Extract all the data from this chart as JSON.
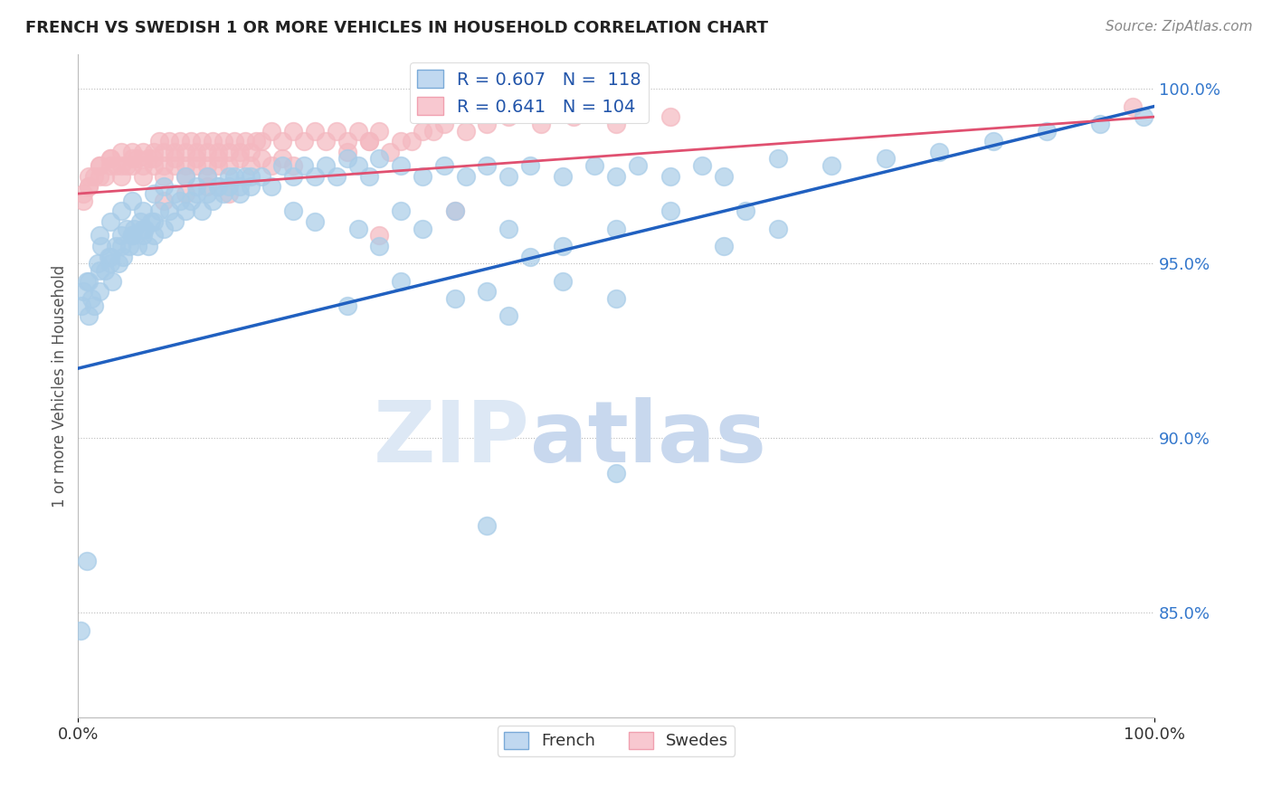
{
  "title": "FRENCH VS SWEDISH 1 OR MORE VEHICLES IN HOUSEHOLD CORRELATION CHART",
  "source": "Source: ZipAtlas.com",
  "ylabel": "1 or more Vehicles in Household",
  "right_yticks": [
    85.0,
    90.0,
    95.0,
    100.0
  ],
  "right_ytick_labels": [
    "85.0%",
    "90.0%",
    "95.0%",
    "100.0%"
  ],
  "dot_color_french": "#a8cce8",
  "dot_color_swedes": "#f4b8c0",
  "line_color_french": "#2060c0",
  "line_color_swedes": "#e05070",
  "ymin": 82.0,
  "ymax": 101.0,
  "xmin": 0.0,
  "xmax": 100.0,
  "french_data": [
    [
      0.3,
      93.8
    ],
    [
      0.5,
      94.2
    ],
    [
      0.8,
      94.5
    ],
    [
      1.0,
      93.5
    ],
    [
      1.2,
      94.0
    ],
    [
      1.5,
      93.8
    ],
    [
      1.8,
      95.0
    ],
    [
      2.0,
      94.2
    ],
    [
      2.2,
      95.5
    ],
    [
      2.5,
      94.8
    ],
    [
      2.8,
      95.2
    ],
    [
      3.0,
      95.0
    ],
    [
      3.2,
      94.5
    ],
    [
      3.5,
      95.5
    ],
    [
      3.8,
      95.0
    ],
    [
      4.0,
      95.8
    ],
    [
      4.2,
      95.2
    ],
    [
      4.5,
      96.0
    ],
    [
      4.8,
      95.5
    ],
    [
      5.0,
      95.8
    ],
    [
      5.2,
      96.0
    ],
    [
      5.5,
      95.5
    ],
    [
      5.8,
      96.2
    ],
    [
      6.0,
      95.8
    ],
    [
      6.2,
      96.0
    ],
    [
      6.5,
      95.5
    ],
    [
      6.8,
      96.2
    ],
    [
      7.0,
      95.8
    ],
    [
      7.5,
      96.5
    ],
    [
      8.0,
      96.0
    ],
    [
      8.5,
      96.5
    ],
    [
      9.0,
      96.2
    ],
    [
      9.5,
      96.8
    ],
    [
      10.0,
      96.5
    ],
    [
      10.5,
      96.8
    ],
    [
      11.0,
      97.0
    ],
    [
      11.5,
      96.5
    ],
    [
      12.0,
      97.0
    ],
    [
      12.5,
      96.8
    ],
    [
      13.0,
      97.2
    ],
    [
      13.5,
      97.0
    ],
    [
      14.0,
      97.2
    ],
    [
      14.5,
      97.5
    ],
    [
      15.0,
      97.0
    ],
    [
      15.5,
      97.5
    ],
    [
      16.0,
      97.2
    ],
    [
      17.0,
      97.5
    ],
    [
      18.0,
      97.2
    ],
    [
      19.0,
      97.8
    ],
    [
      20.0,
      97.5
    ],
    [
      21.0,
      97.8
    ],
    [
      22.0,
      97.5
    ],
    [
      23.0,
      97.8
    ],
    [
      24.0,
      97.5
    ],
    [
      25.0,
      98.0
    ],
    [
      26.0,
      97.8
    ],
    [
      27.0,
      97.5
    ],
    [
      28.0,
      98.0
    ],
    [
      30.0,
      97.8
    ],
    [
      32.0,
      97.5
    ],
    [
      34.0,
      97.8
    ],
    [
      36.0,
      97.5
    ],
    [
      38.0,
      97.8
    ],
    [
      40.0,
      97.5
    ],
    [
      42.0,
      97.8
    ],
    [
      45.0,
      97.5
    ],
    [
      48.0,
      97.8
    ],
    [
      50.0,
      97.5
    ],
    [
      52.0,
      97.8
    ],
    [
      55.0,
      97.5
    ],
    [
      58.0,
      97.8
    ],
    [
      60.0,
      97.5
    ],
    [
      65.0,
      98.0
    ],
    [
      70.0,
      97.8
    ],
    [
      75.0,
      98.0
    ],
    [
      80.0,
      98.2
    ],
    [
      85.0,
      98.5
    ],
    [
      90.0,
      98.8
    ],
    [
      95.0,
      99.0
    ],
    [
      99.0,
      99.2
    ],
    [
      2.0,
      95.8
    ],
    [
      3.0,
      96.2
    ],
    [
      4.0,
      96.5
    ],
    [
      5.0,
      96.8
    ],
    [
      6.0,
      96.5
    ],
    [
      7.0,
      97.0
    ],
    [
      8.0,
      97.2
    ],
    [
      9.0,
      97.0
    ],
    [
      10.0,
      97.5
    ],
    [
      11.0,
      97.2
    ],
    [
      12.0,
      97.5
    ],
    [
      13.0,
      97.2
    ],
    [
      14.0,
      97.5
    ],
    [
      15.0,
      97.2
    ],
    [
      16.0,
      97.5
    ],
    [
      1.0,
      94.5
    ],
    [
      2.0,
      94.8
    ],
    [
      3.0,
      95.2
    ],
    [
      4.0,
      95.5
    ],
    [
      5.0,
      95.8
    ],
    [
      6.0,
      96.0
    ],
    [
      7.0,
      96.2
    ],
    [
      0.2,
      84.5
    ],
    [
      0.8,
      86.5
    ],
    [
      30.0,
      94.5
    ],
    [
      35.0,
      94.0
    ],
    [
      40.0,
      93.5
    ],
    [
      25.0,
      93.8
    ],
    [
      35.0,
      96.5
    ],
    [
      40.0,
      96.0
    ],
    [
      45.0,
      95.5
    ],
    [
      50.0,
      96.0
    ],
    [
      45.0,
      94.5
    ],
    [
      50.0,
      94.0
    ],
    [
      38.0,
      94.2
    ],
    [
      42.0,
      95.2
    ],
    [
      30.0,
      96.5
    ],
    [
      32.0,
      96.0
    ],
    [
      28.0,
      95.5
    ],
    [
      26.0,
      96.0
    ],
    [
      20.0,
      96.5
    ],
    [
      22.0,
      96.2
    ],
    [
      50.0,
      89.0
    ],
    [
      38.0,
      87.5
    ],
    [
      60.0,
      95.5
    ],
    [
      62.0,
      96.5
    ],
    [
      65.0,
      96.0
    ],
    [
      55.0,
      96.5
    ]
  ],
  "swedes_data": [
    [
      0.5,
      96.8
    ],
    [
      1.0,
      97.2
    ],
    [
      1.5,
      97.5
    ],
    [
      2.0,
      97.8
    ],
    [
      2.5,
      97.5
    ],
    [
      3.0,
      98.0
    ],
    [
      3.5,
      97.8
    ],
    [
      4.0,
      98.2
    ],
    [
      4.5,
      97.8
    ],
    [
      5.0,
      98.2
    ],
    [
      5.5,
      98.0
    ],
    [
      6.0,
      98.2
    ],
    [
      6.5,
      98.0
    ],
    [
      7.0,
      98.2
    ],
    [
      7.5,
      98.5
    ],
    [
      8.0,
      98.2
    ],
    [
      8.5,
      98.5
    ],
    [
      9.0,
      98.2
    ],
    [
      9.5,
      98.5
    ],
    [
      10.0,
      98.2
    ],
    [
      10.5,
      98.5
    ],
    [
      11.0,
      98.2
    ],
    [
      11.5,
      98.5
    ],
    [
      12.0,
      98.2
    ],
    [
      12.5,
      98.5
    ],
    [
      13.0,
      98.2
    ],
    [
      13.5,
      98.5
    ],
    [
      14.0,
      98.2
    ],
    [
      14.5,
      98.5
    ],
    [
      15.0,
      98.2
    ],
    [
      15.5,
      98.5
    ],
    [
      16.0,
      98.2
    ],
    [
      16.5,
      98.5
    ],
    [
      17.0,
      98.5
    ],
    [
      18.0,
      98.8
    ],
    [
      19.0,
      98.5
    ],
    [
      20.0,
      98.8
    ],
    [
      21.0,
      98.5
    ],
    [
      22.0,
      98.8
    ],
    [
      23.0,
      98.5
    ],
    [
      24.0,
      98.8
    ],
    [
      25.0,
      98.5
    ],
    [
      26.0,
      98.8
    ],
    [
      27.0,
      98.5
    ],
    [
      28.0,
      98.8
    ],
    [
      30.0,
      98.5
    ],
    [
      32.0,
      98.8
    ],
    [
      34.0,
      99.0
    ],
    [
      36.0,
      98.8
    ],
    [
      38.0,
      99.0
    ],
    [
      1.0,
      97.5
    ],
    [
      2.0,
      97.8
    ],
    [
      3.0,
      98.0
    ],
    [
      4.0,
      97.8
    ],
    [
      5.0,
      98.0
    ],
    [
      6.0,
      97.8
    ],
    [
      7.0,
      98.0
    ],
    [
      8.0,
      97.8
    ],
    [
      9.0,
      98.0
    ],
    [
      10.0,
      97.8
    ],
    [
      11.0,
      98.0
    ],
    [
      12.0,
      97.8
    ],
    [
      13.0,
      98.0
    ],
    [
      14.0,
      97.8
    ],
    [
      15.0,
      98.0
    ],
    [
      16.0,
      97.8
    ],
    [
      17.0,
      98.0
    ],
    [
      18.0,
      97.8
    ],
    [
      19.0,
      98.0
    ],
    [
      20.0,
      97.8
    ],
    [
      0.5,
      97.0
    ],
    [
      1.0,
      97.2
    ],
    [
      2.0,
      97.5
    ],
    [
      3.0,
      97.8
    ],
    [
      4.0,
      97.5
    ],
    [
      5.0,
      97.8
    ],
    [
      6.0,
      97.5
    ],
    [
      7.0,
      97.8
    ],
    [
      8.0,
      97.5
    ],
    [
      9.0,
      97.8
    ],
    [
      10.0,
      97.5
    ],
    [
      11.0,
      97.8
    ],
    [
      12.0,
      97.5
    ],
    [
      13.0,
      97.8
    ],
    [
      25.0,
      98.2
    ],
    [
      27.0,
      98.5
    ],
    [
      29.0,
      98.2
    ],
    [
      31.0,
      98.5
    ],
    [
      33.0,
      98.8
    ],
    [
      8.0,
      96.8
    ],
    [
      10.0,
      97.0
    ],
    [
      12.0,
      97.2
    ],
    [
      14.0,
      97.0
    ],
    [
      35.0,
      96.5
    ],
    [
      28.0,
      95.8
    ],
    [
      40.0,
      99.2
    ],
    [
      43.0,
      99.0
    ],
    [
      46.0,
      99.2
    ],
    [
      50.0,
      99.0
    ],
    [
      55.0,
      99.2
    ],
    [
      98.0,
      99.5
    ]
  ]
}
